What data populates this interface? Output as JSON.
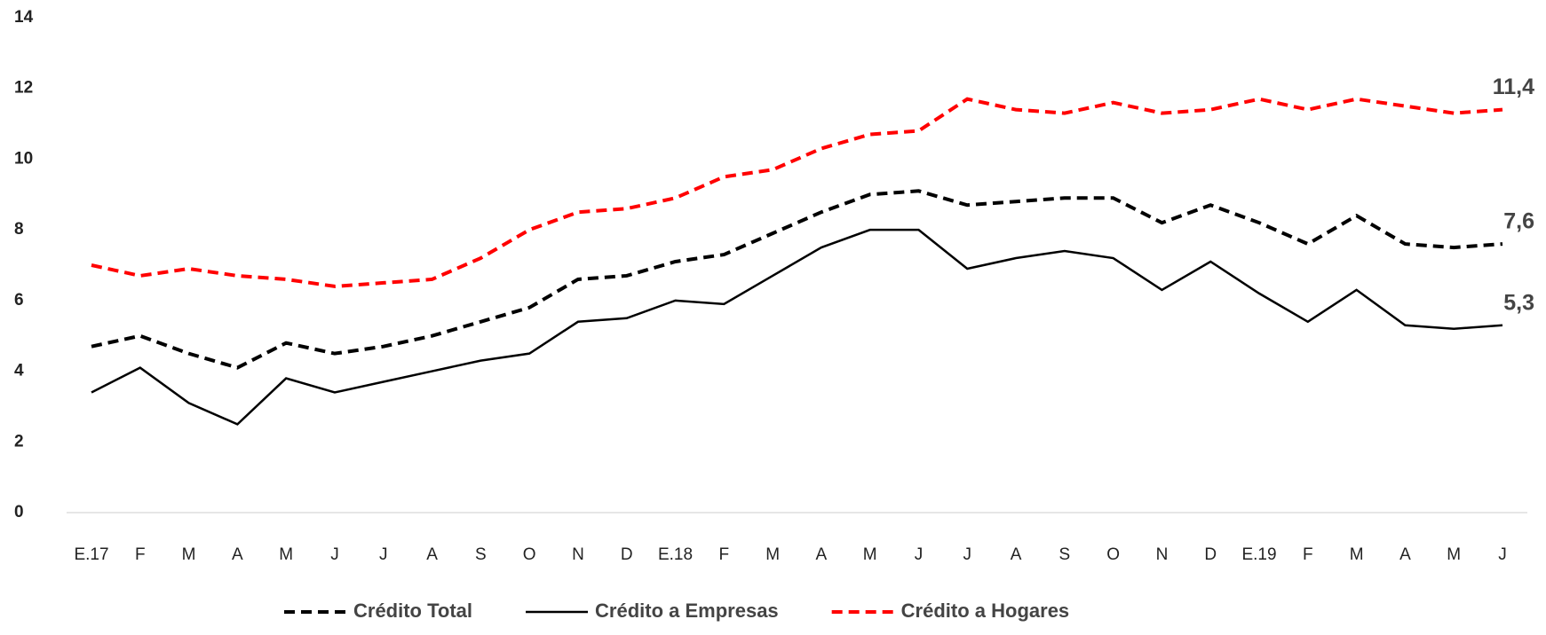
{
  "chart_data": {
    "type": "line",
    "categories": [
      "E.17",
      "F",
      "M",
      "A",
      "M",
      "J",
      "J",
      "A",
      "S",
      "O",
      "N",
      "D",
      "E.18",
      "F",
      "M",
      "A",
      "M",
      "J",
      "J",
      "A",
      "S",
      "O",
      "N",
      "D",
      "E.19",
      "F",
      "M",
      "A",
      "M",
      "J"
    ],
    "ylim": [
      0,
      14
    ],
    "yticks": [
      0,
      2,
      4,
      6,
      8,
      10,
      12,
      14
    ],
    "grid": false,
    "legend": "bottom",
    "series": [
      {
        "name": "Crédito Total",
        "color": "#000000",
        "dash": "dashed",
        "values": [
          4.7,
          5.0,
          4.5,
          4.1,
          4.8,
          4.5,
          4.7,
          5.0,
          5.4,
          5.8,
          6.6,
          6.7,
          7.1,
          7.3,
          7.9,
          8.5,
          9.0,
          9.1,
          8.7,
          8.8,
          8.9,
          8.9,
          8.2,
          8.7,
          8.2,
          7.6,
          8.4,
          7.6,
          7.5,
          7.6
        ],
        "value_labels": [
          null,
          null,
          null,
          null,
          null,
          null,
          null,
          null,
          null,
          null,
          null,
          null,
          null,
          null,
          null,
          null,
          null,
          null,
          null,
          null,
          null,
          null,
          null,
          null,
          null,
          null,
          null,
          null,
          null,
          "7,6"
        ]
      },
      {
        "name": "Crédito a Empresas",
        "color": "#000000",
        "dash": "solid",
        "values": [
          3.4,
          4.1,
          3.1,
          2.5,
          3.8,
          3.4,
          3.7,
          4.0,
          4.3,
          4.5,
          5.4,
          5.5,
          6.0,
          5.9,
          6.7,
          7.5,
          8.0,
          8.0,
          6.9,
          7.2,
          7.4,
          7.2,
          6.3,
          7.1,
          6.2,
          5.4,
          6.3,
          5.3,
          5.2,
          5.3
        ],
        "value_labels": [
          null,
          null,
          null,
          null,
          null,
          null,
          null,
          null,
          null,
          null,
          null,
          null,
          null,
          null,
          null,
          null,
          null,
          null,
          null,
          null,
          null,
          null,
          null,
          null,
          null,
          null,
          null,
          null,
          null,
          "5,3"
        ]
      },
      {
        "name": "Crédito a Hogares",
        "color": "#ff0000",
        "dash": "dashed",
        "values": [
          7.0,
          6.7,
          6.9,
          6.7,
          6.6,
          6.4,
          6.5,
          6.6,
          7.2,
          8.0,
          8.5,
          8.6,
          8.9,
          9.5,
          9.7,
          10.3,
          10.7,
          10.8,
          11.7,
          11.4,
          11.3,
          11.6,
          11.3,
          11.4,
          11.7,
          11.4,
          11.7,
          11.5,
          11.3,
          11.4
        ],
        "value_labels": [
          null,
          null,
          null,
          null,
          null,
          null,
          null,
          null,
          null,
          null,
          null,
          null,
          null,
          null,
          null,
          null,
          null,
          null,
          null,
          null,
          null,
          null,
          null,
          null,
          null,
          null,
          null,
          null,
          null,
          "11,4"
        ]
      }
    ]
  }
}
